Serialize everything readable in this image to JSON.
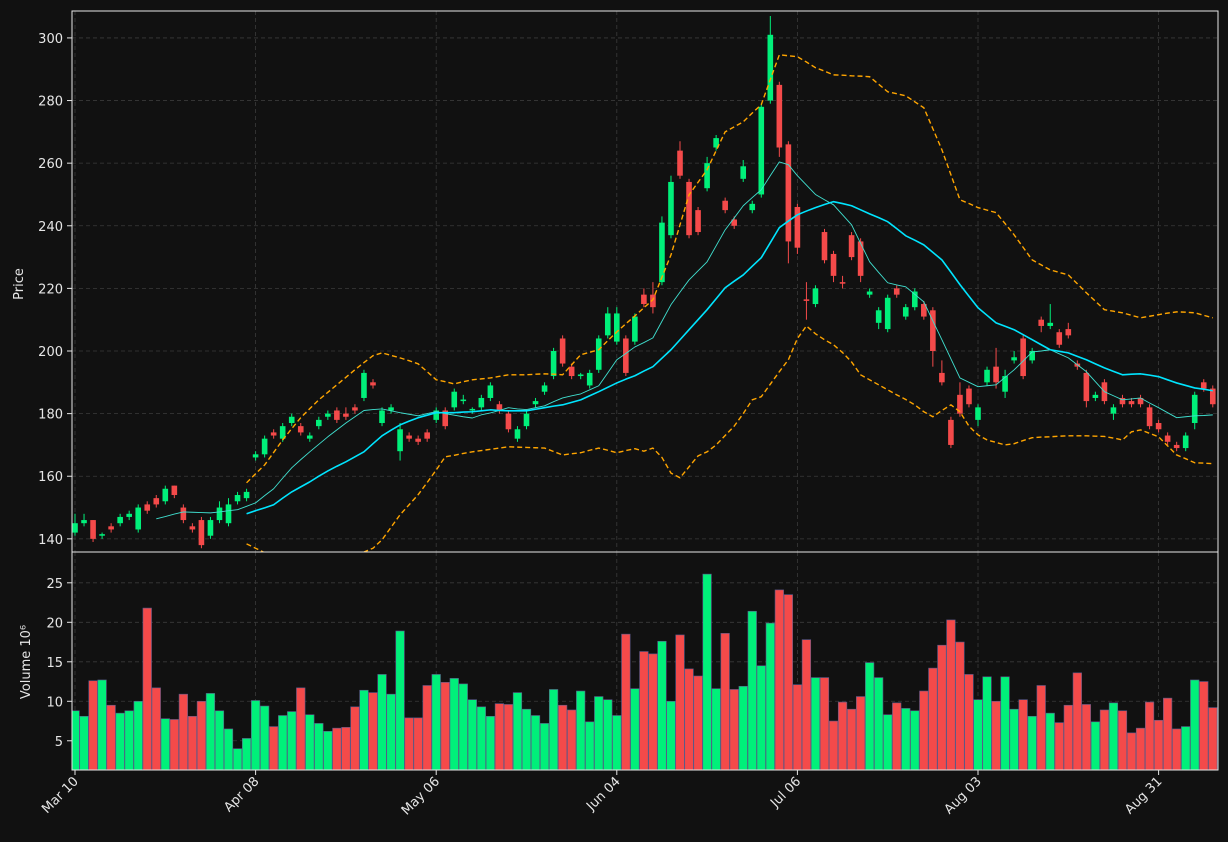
{
  "chart_data": {
    "type": "candlestick",
    "ylabel": "Price",
    "volume_label": "Volume  10⁶",
    "categories": [
      "Mar 10",
      null,
      null,
      null,
      null,
      null,
      null,
      null,
      null,
      null,
      null,
      null,
      null,
      null,
      null,
      null,
      null,
      null,
      null,
      null,
      "Apr 08",
      null,
      null,
      null,
      null,
      null,
      null,
      null,
      null,
      null,
      null,
      null,
      null,
      null,
      null,
      null,
      null,
      null,
      null,
      null,
      "May 06",
      null,
      null,
      null,
      null,
      null,
      null,
      null,
      null,
      null,
      null,
      null,
      null,
      null,
      null,
      null,
      null,
      null,
      null,
      null,
      "Jun 04",
      null,
      null,
      null,
      null,
      null,
      null,
      null,
      null,
      null,
      null,
      null,
      null,
      null,
      null,
      null,
      null,
      null,
      null,
      null,
      "Jul 06",
      null,
      null,
      null,
      null,
      null,
      null,
      null,
      null,
      null,
      null,
      null,
      null,
      null,
      null,
      null,
      null,
      null,
      null,
      null,
      "Aug 03",
      null,
      null,
      null,
      null,
      null,
      null,
      null,
      null,
      null,
      null,
      null,
      null,
      null,
      null,
      null,
      null,
      null,
      null,
      null,
      "Aug 31",
      null,
      null,
      null,
      null,
      null,
      null
    ],
    "open": [
      142,
      145,
      146,
      141,
      144,
      145,
      147,
      143,
      151,
      153,
      152,
      157,
      150,
      144,
      146,
      141,
      146,
      145,
      152,
      153,
      166,
      167,
      174,
      172,
      177,
      176,
      172,
      176,
      179,
      181,
      180,
      182,
      185,
      190,
      177,
      181,
      168,
      173,
      172,
      174,
      178,
      181,
      182,
      184,
      181,
      182,
      185,
      183,
      180,
      172,
      176,
      183,
      187,
      192,
      204,
      195,
      192,
      189,
      194,
      205,
      203,
      204,
      203,
      218,
      218,
      222,
      237,
      264,
      254,
      245,
      252,
      265,
      248,
      242,
      255,
      245,
      250,
      280,
      285,
      266,
      246,
      216.5,
      215,
      238,
      231,
      222,
      237,
      235,
      218,
      209,
      207,
      220,
      211,
      214,
      215,
      213,
      193,
      178,
      186,
      188,
      178,
      190,
      195,
      187,
      197,
      204,
      197,
      210,
      208,
      206,
      207,
      196,
      193,
      185,
      190,
      180,
      185,
      184,
      185,
      182,
      177,
      173,
      170,
      169,
      177,
      190,
      188
    ],
    "high": [
      148,
      148,
      146,
      142,
      145,
      148,
      149,
      151,
      152,
      154,
      157,
      157,
      151,
      145,
      147,
      147,
      152,
      153,
      155,
      156,
      168,
      173,
      175,
      177,
      180,
      177,
      174,
      179,
      181,
      182,
      182,
      183,
      194,
      191,
      182,
      183,
      177,
      174,
      173,
      175,
      182,
      182,
      188,
      186,
      182,
      186,
      190,
      184,
      181,
      176,
      181,
      185,
      190,
      201,
      205,
      196,
      193,
      194,
      205,
      214,
      214,
      205,
      212,
      220,
      222,
      243,
      256,
      267,
      255,
      246,
      262,
      269,
      249,
      243,
      261,
      248,
      279,
      307,
      286,
      267,
      247,
      222,
      221,
      239,
      232,
      224,
      238,
      236,
      220,
      214,
      218,
      221,
      215,
      220,
      216,
      214,
      197,
      179,
      190,
      189,
      183,
      195,
      201,
      194,
      200,
      205,
      201,
      211,
      215,
      207,
      209,
      197,
      194,
      187,
      191,
      183,
      186,
      185,
      186,
      183,
      178,
      174,
      171,
      174,
      187,
      191,
      189
    ],
    "low": [
      141,
      144,
      139,
      140,
      142,
      144,
      146,
      142,
      148,
      150,
      151,
      153,
      145,
      142,
      137,
      140,
      145,
      144,
      151,
      152,
      165,
      166,
      172,
      171,
      176,
      173,
      171,
      175,
      178,
      177,
      178,
      180,
      184,
      188,
      176,
      180,
      165,
      171,
      170,
      171,
      177,
      175,
      181,
      183,
      180,
      181,
      184,
      180,
      174,
      171,
      175,
      182,
      186,
      191,
      195,
      191,
      191,
      188,
      193,
      204,
      202,
      192,
      202,
      214,
      212,
      221,
      236,
      255,
      236,
      237,
      251,
      264,
      244,
      239,
      254,
      244,
      249,
      279,
      262,
      228,
      231,
      210,
      214,
      228,
      222,
      220,
      229,
      222,
      217,
      207,
      206,
      217,
      210,
      213,
      210,
      195,
      189,
      169,
      179,
      182,
      176,
      189,
      188,
      185,
      196,
      191,
      196,
      206,
      207,
      201,
      204,
      194,
      182,
      184,
      183,
      178,
      182,
      182,
      182,
      175,
      174,
      170,
      168,
      168,
      175,
      187,
      182
    ],
    "close": [
      145,
      146,
      140,
      141.5,
      143,
      147,
      148,
      150,
      149,
      151,
      156,
      154,
      146,
      143,
      138,
      146,
      150,
      151,
      154,
      155,
      167,
      172,
      173,
      176,
      179,
      174,
      173,
      178,
      180,
      178,
      179,
      181,
      193,
      189,
      181,
      182,
      175,
      172,
      171,
      172,
      181,
      176,
      187,
      184.5,
      181.5,
      185,
      189,
      181,
      175,
      175,
      180,
      184,
      189,
      200,
      196,
      192,
      192.5,
      193,
      204,
      212,
      212,
      193,
      211,
      215,
      214,
      241,
      254,
      256,
      237,
      238,
      260,
      268,
      245,
      240,
      259,
      247,
      278,
      301,
      265,
      235,
      233,
      216,
      220,
      229,
      224,
      221.5,
      230,
      224,
      219,
      213,
      217,
      218,
      214,
      219,
      211,
      200,
      190,
      170,
      180,
      183,
      182,
      194,
      190,
      192,
      198,
      192,
      200,
      208,
      209,
      202,
      205,
      195,
      184,
      186,
      184,
      182,
      183,
      183,
      183,
      176,
      175,
      171,
      169,
      173,
      186,
      188,
      183
    ],
    "volume": [
      8.8,
      8.1,
      12.6,
      12.7,
      9.5,
      8.5,
      8.8,
      10,
      21.8,
      11.7,
      7.8,
      7.7,
      10.9,
      8.1,
      10,
      11,
      8.8,
      6.5,
      4,
      5.3,
      10.1,
      9.4,
      6.8,
      8.2,
      8.7,
      11.7,
      8.3,
      7.2,
      6.2,
      6.6,
      6.7,
      9.3,
      11.4,
      11.1,
      13.4,
      10.9,
      18.9,
      7.9,
      7.9,
      12,
      13.4,
      12.4,
      12.9,
      12.2,
      10.2,
      9.3,
      8.1,
      9.7,
      9.6,
      11.1,
      9,
      8.2,
      7.2,
      11.5,
      9.5,
      8.9,
      11.3,
      7.4,
      10.6,
      10.2,
      8.2,
      18.5,
      11.6,
      16.3,
      16,
      17.6,
      10,
      18.4,
      14.1,
      13.2,
      26.1,
      11.6,
      18.6,
      11.5,
      11.9,
      21.4,
      14.5,
      19.9,
      24.1,
      23.5,
      12.1,
      17.8,
      13,
      13,
      7.5,
      9.9,
      9,
      10.6,
      14.9,
      13,
      8.3,
      9.8,
      9.1,
      8.8,
      11.3,
      14.2,
      17.1,
      20.3,
      17.5,
      13.4,
      10.2,
      13.1,
      10,
      13.1,
      9,
      10.2,
      8.1,
      12,
      8.5,
      7.3,
      9.5,
      13.6,
      9.6,
      7.4,
      8.9,
      9.8,
      8.8,
      6,
      6.6,
      9.9,
      7.6,
      10.4,
      6.5,
      6.8,
      12.7,
      12.5,
      9.2
    ],
    "up_color": "#00f07a",
    "down_color": "#f44a4a",
    "lines": [
      {
        "color": "#40e0d0",
        "width": 0.9,
        "dash": false,
        "values": [
          null,
          null,
          null,
          null,
          null,
          null,
          null,
          null,
          null,
          146.4,
          147.1,
          147.9,
          148.6,
          148.5,
          148.4,
          148.3,
          148.6,
          149,
          149.3,
          150.4,
          151.5,
          153.8,
          156,
          159.4,
          162.7,
          165.3,
          167.8,
          170.2,
          172.6,
          174.8,
          177,
          179,
          181,
          181.3,
          181.5,
          180.9,
          180.3,
          179.8,
          179.3,
          180,
          180.6,
          180,
          179.5,
          179,
          178.6,
          179.6,
          180.2,
          181,
          181.9,
          181.5,
          181.3,
          181.9,
          182.5,
          183.8,
          185,
          185.7,
          186.3,
          187.6,
          188.9,
          193,
          197.2,
          199.2,
          201.3,
          202.7,
          204.2,
          209.5,
          214.8,
          218.8,
          222.7,
          225.6,
          228.5,
          233.6,
          238.7,
          242.5,
          246.4,
          249,
          251.5,
          256,
          260.4,
          259.5,
          256,
          253,
          250,
          248.3,
          246.7,
          243.5,
          240.3,
          234.4,
          228.5,
          225.1,
          221.8,
          221.1,
          220.5,
          218.1,
          215.7,
          209.6,
          203.6,
          197.5,
          191.4,
          190,
          188.6,
          188.9,
          189.2,
          191.6,
          194,
          196.8,
          199.7,
          200,
          200.4,
          199.1,
          197.8,
          195.6,
          193.4,
          190.2,
          187,
          185.7,
          184.4,
          184.7,
          185,
          183.4,
          181.9,
          180.3,
          178.7,
          179,
          179.3,
          179.4,
          179.6
        ]
      },
      {
        "color": "#00e5ff",
        "width": 1.6,
        "dash": false,
        "values": [
          null,
          null,
          null,
          null,
          null,
          null,
          null,
          null,
          null,
          null,
          null,
          null,
          null,
          null,
          null,
          null,
          null,
          null,
          null,
          148,
          149,
          149.9,
          150.9,
          153,
          155,
          156.6,
          158.2,
          160,
          161.7,
          163.2,
          164.6,
          166.2,
          167.8,
          170.4,
          172.9,
          174.7,
          176.4,
          177.6,
          178.7,
          179.5,
          180.3,
          180.3,
          180.3,
          180.5,
          180.6,
          180.9,
          181.2,
          181,
          180.9,
          180.9,
          180.9,
          181.4,
          181.9,
          182.4,
          182.8,
          183.6,
          184.4,
          185.7,
          187,
          188.4,
          189.8,
          191,
          192.1,
          193.6,
          195,
          197.7,
          200.4,
          203.6,
          206.8,
          210,
          213.2,
          216.7,
          220.2,
          222.3,
          224.3,
          227.1,
          229.8,
          234.6,
          239.4,
          241.5,
          243.5,
          244.7,
          245.8,
          246.8,
          247.7,
          247.1,
          246.4,
          245.1,
          243.8,
          242.6,
          241.3,
          239.1,
          236.8,
          235.4,
          233.9,
          231.5,
          229.1,
          225.2,
          221.2,
          217.5,
          213.8,
          211.4,
          209,
          207.9,
          206.8,
          205.2,
          203.6,
          202,
          200.4,
          199.9,
          199.4,
          198.3,
          197.2,
          195.9,
          194.6,
          193.5,
          192.4,
          192.6,
          192.7,
          192.3,
          191.8,
          190.8,
          189.8,
          189,
          188.2,
          187.8,
          187.3
        ]
      },
      {
        "color": "#ffa500",
        "width": 1.4,
        "dash": true,
        "values": [
          null,
          null,
          null,
          null,
          null,
          null,
          null,
          null,
          null,
          null,
          null,
          null,
          null,
          null,
          null,
          null,
          null,
          null,
          null,
          157.9,
          160.8,
          163.6,
          167.6,
          171.6,
          175.2,
          178.7,
          181.6,
          184.4,
          186.8,
          189.2,
          191.6,
          194,
          196.3,
          198.5,
          199.4,
          198.6,
          197.8,
          196.9,
          195.9,
          193.4,
          190.8,
          190.2,
          189.5,
          190.2,
          190.8,
          191.1,
          191.4,
          191.9,
          192.4,
          192.4,
          192.4,
          192.6,
          192.7,
          192.6,
          192.4,
          195.6,
          198.8,
          199.6,
          200.4,
          203.3,
          206.1,
          208.7,
          211.2,
          213.8,
          216.4,
          223.6,
          230.7,
          240.3,
          249.9,
          253.9,
          257.9,
          264,
          270,
          271.6,
          273.2,
          276,
          278.7,
          286.7,
          294.6,
          294.3,
          294,
          292.3,
          290.5,
          289.4,
          288.2,
          288.1,
          287.9,
          287.8,
          287.6,
          285.2,
          282.8,
          282.2,
          281.5,
          279.6,
          277.7,
          271,
          264.3,
          256.3,
          248.3,
          247.1,
          245.8,
          245,
          244.2,
          240.7,
          237.1,
          233.1,
          229.1,
          227.5,
          225.9,
          225.1,
          224.3,
          221.5,
          218.6,
          215.9,
          213.2,
          212.7,
          212.2,
          211.4,
          210.6,
          211.1,
          211.6,
          212.1,
          212.5,
          212.4,
          212.2,
          211.4,
          210.6
        ]
      },
      {
        "color": "#ffa500",
        "width": 1.4,
        "dash": true,
        "values": [
          null,
          null,
          null,
          null,
          null,
          null,
          null,
          null,
          null,
          null,
          null,
          null,
          null,
          null,
          null,
          null,
          null,
          null,
          null,
          138.4,
          137,
          135.6,
          134.8,
          134.2,
          133.8,
          133.6,
          133.6,
          133.8,
          134,
          134.2,
          134.6,
          135,
          135.8,
          137,
          139.7,
          143.7,
          147.7,
          150.9,
          154.1,
          158,
          162,
          166.2,
          166.7,
          167.3,
          167.8,
          168.2,
          168.6,
          169,
          169.4,
          169.3,
          169.2,
          169.1,
          169,
          167.9,
          166.8,
          167.2,
          167.5,
          168.3,
          169,
          168.3,
          167.5,
          168.2,
          168.8,
          168,
          169,
          166,
          161,
          159.5,
          163,
          166.5,
          167.8,
          170,
          173,
          176,
          180,
          184.4,
          185.4,
          189.4,
          193.4,
          197.2,
          204,
          208,
          205.5,
          203.6,
          202,
          199.5,
          196.5,
          192.4,
          190.8,
          189.2,
          187.6,
          186,
          184.5,
          182.8,
          180.6,
          179,
          181,
          182.8,
          180.6,
          176,
          173.2,
          171.6,
          170.8,
          170,
          170.4,
          171.4,
          172.3,
          172.5,
          172.6,
          172.8,
          172.9,
          172.9,
          172.9,
          172.8,
          172.7,
          172.2,
          171.6,
          174.2,
          174.8,
          173.7,
          172.6,
          169.7,
          166.8,
          165.6,
          164.3,
          164.2,
          164
        ]
      }
    ],
    "ylim": [
      135.8,
      308.6
    ],
    "yticks": [
      140,
      160,
      180,
      200,
      220,
      240,
      260,
      280,
      300
    ],
    "volume_ylim": [
      1.3,
      28.9
    ],
    "volume_yticks": [
      5,
      10,
      15,
      20,
      25
    ],
    "grid": true
  }
}
